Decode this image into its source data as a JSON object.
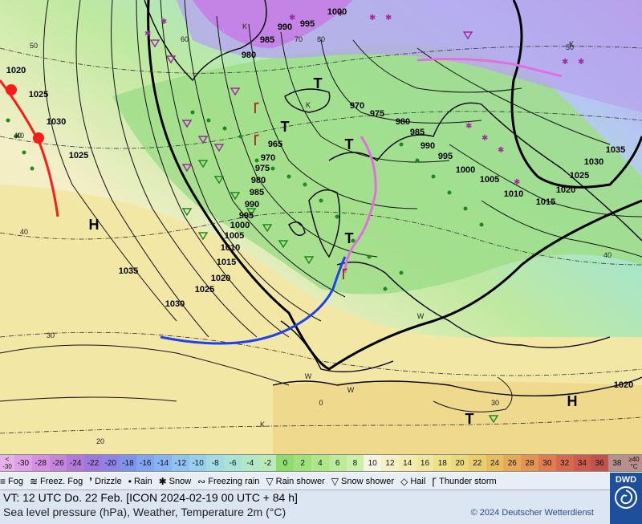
{
  "map": {
    "pressure_labels": [
      "990",
      "995",
      "1000",
      "985",
      "980",
      "970",
      "975",
      "980",
      "985",
      "990",
      "995",
      "1000",
      "1005",
      "1010",
      "1015",
      "1020",
      "1025",
      "1030",
      "1035",
      "965",
      "970",
      "975",
      "980",
      "985",
      "990",
      "995",
      "1000",
      "1005",
      "1010",
      "1015",
      "1020",
      "1025",
      "1030",
      "1035",
      "1025",
      "1030",
      "1020",
      "1025",
      "1020",
      "1035",
      "1030",
      "1025",
      "1020"
    ],
    "temp_labels": [
      "50",
      "40",
      "40",
      "30",
      "20",
      "50",
      "40",
      "60",
      "70",
      "80",
      "0",
      "30",
      "40"
    ],
    "high_label": "H",
    "low_label": "T",
    "cold_label": "K",
    "warm_label": "W",
    "colors": {
      "sea_warm": "#f2e9b8",
      "sea_mid": "#dff0b0",
      "green": "#9fe08a",
      "cyan": "#a8e6d8",
      "blue": "#b9c8f4",
      "purple": "#b98ee8",
      "front_cold": "#1f3ff0",
      "front_warm": "#ff1a1a",
      "front_occ": "#e070e0"
    }
  },
  "scale": {
    "first": {
      "top": "<",
      "bottom": "-30"
    },
    "values": [
      "-30",
      "-28",
      "-26",
      "-24",
      "-22",
      "-20",
      "-18",
      "-16",
      "-14",
      "-12",
      "-10",
      "-8",
      "-6",
      "-4",
      "-2",
      "0",
      "2",
      "4",
      "6",
      "8",
      "10",
      "12",
      "14",
      "16",
      "18",
      "20",
      "22",
      "24",
      "26",
      "28",
      "30",
      "32",
      "34",
      "36",
      "38"
    ],
    "colors": [
      "#e0a0e8",
      "#d48fe3",
      "#c585df",
      "#b27ad8",
      "#9d78df",
      "#8e83e6",
      "#8093ea",
      "#83a3ef",
      "#86b3f1",
      "#8fc3f2",
      "#97d0ee",
      "#a1dbe4",
      "#a9e3d6",
      "#b1e8c6",
      "#b8ebb8",
      "#8fdc6e",
      "#9fe27a",
      "#aee788",
      "#bdec98",
      "#cbf0a8",
      "#f6f6e0",
      "#f4f1c7",
      "#f1ecb0",
      "#efe79c",
      "#ede18a",
      "#ebd97b",
      "#eacd6c",
      "#e8bd5e",
      "#e6a957",
      "#e49552",
      "#e07c50",
      "#d8694e",
      "#cd5b4e",
      "#c0534c",
      "#b5908c"
    ],
    "last": {
      "top": "≥40",
      "bottom": "°C"
    }
  },
  "legend": [
    {
      "icon": "fog-icon",
      "symbol": "≡",
      "label": "Fog"
    },
    {
      "icon": "freezing-fog-icon",
      "symbol": "≋",
      "label": "Freez. Fog"
    },
    {
      "icon": "drizzle-icon",
      "symbol": "❜",
      "label": "Drizzle"
    },
    {
      "icon": "rain-icon",
      "symbol": "•",
      "label": "Rain"
    },
    {
      "icon": "snow-icon",
      "symbol": "✱",
      "label": "Snow"
    },
    {
      "icon": "freezing-rain-icon",
      "symbol": "∾",
      "label": "Freezing rain"
    },
    {
      "icon": "rain-shower-icon",
      "symbol": "▽",
      "label": "Rain shower"
    },
    {
      "icon": "snow-shower-icon",
      "symbol": "▽",
      "label": "Snow shower"
    },
    {
      "icon": "hail-icon",
      "symbol": "◇",
      "label": "Hail"
    },
    {
      "icon": "thunderstorm-icon",
      "symbol": "Ꞅ",
      "label": "Thunder storm"
    }
  ],
  "info": {
    "vt": "VT: 12 UTC Do.  22 Feb. [ICON 2024-02-19  00 UTC + 84 h]",
    "subtitle": "Sea level pressure (hPa), Weather, Temperature 2m (°C)",
    "copyright": "© 2024 Deutscher Wetterdienst"
  },
  "logo": {
    "text": "DWD"
  }
}
